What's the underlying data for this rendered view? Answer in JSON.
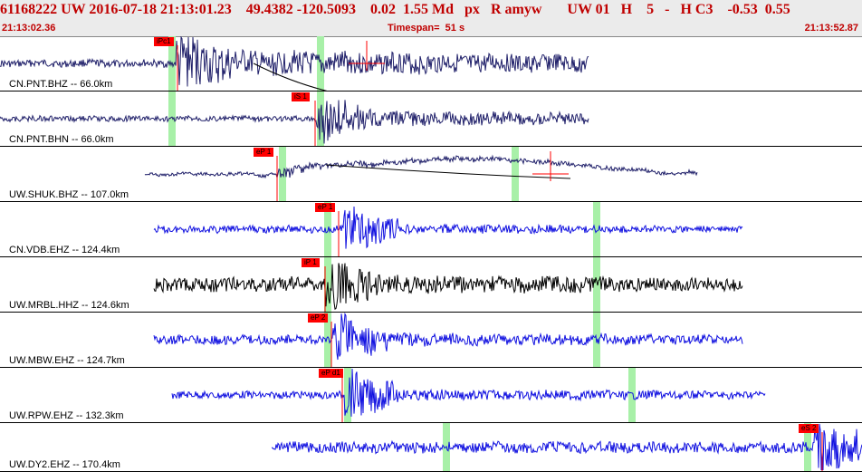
{
  "header": {
    "event_id": "61168222",
    "network": "UW",
    "datetime": "2016-07-18 21:13:01.23",
    "lat": "49.4382",
    "lon": "-120.5093",
    "depth": "0.02",
    "magnitude": "1.55",
    "mag_type": "Md",
    "px": "px",
    "review": "R",
    "author": "amyw",
    "net2": "UW",
    "num01": "01",
    "h1": "H",
    "n5": "5",
    "dash": "-",
    "hc3": "H C3",
    "val1": "-0.53",
    "val2": "0.55",
    "start_time": "21:13:02.36",
    "timespan": "Timespan=  51 s",
    "end_time": "21:13:52.87"
  },
  "panels": [
    {
      "label": "CN.PNT.BHZ -- 66.0km",
      "pick": "iPc1",
      "color": "#20206a"
    },
    {
      "label": "CN.PNT.BHN -- 66.0km",
      "pick": "iS 1",
      "color": "#20206a"
    },
    {
      "label": "UW.SHUK.BHZ -- 107.0km",
      "pick": "eP 1",
      "color": "#20206a"
    },
    {
      "label": "CN.VDB.EHZ -- 124.4km",
      "pick": "eP 1",
      "color": "#1010e0"
    },
    {
      "label": "UW.MRBL.HHZ -- 124.6km",
      "pick": "iP 1",
      "color": "#000000"
    },
    {
      "label": "UW.MBW.EHZ -- 124.7km",
      "pick": "eP 2",
      "color": "#1010e0"
    },
    {
      "label": "UW.RPW.EHZ -- 132.3km",
      "pick": "eP d1",
      "color": "#1010e0"
    },
    {
      "label": "UW.DY2.EHZ -- 170.4km",
      "pick": "eS 2",
      "color": "#1010e0"
    }
  ]
}
